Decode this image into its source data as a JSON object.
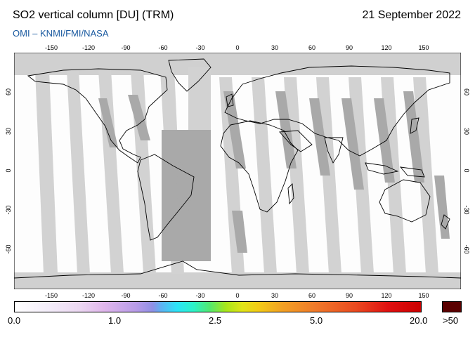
{
  "header": {
    "title": "SO2 vertical column [DU] (TRM)",
    "date": "21 September 2022",
    "credit": "OMI  –  KNMI/FMI/NASA"
  },
  "map": {
    "lon_ticks": [
      "-150",
      "-120",
      "-90",
      "-60",
      "-30",
      "0",
      "30",
      "60",
      "90",
      "120",
      "150"
    ],
    "lat_ticks": [
      "60",
      "30",
      "0",
      "-30",
      "-60"
    ],
    "colors": {
      "no_data": "#d0d0d0",
      "overlap": "#a8a8a8",
      "background": "#ffffff"
    }
  },
  "colorbar": {
    "labels": [
      "0.0",
      "1.0",
      "2.5",
      "5.0",
      "20.0"
    ],
    "overflow_label": ">50",
    "overflow_color": "#5a0000"
  }
}
